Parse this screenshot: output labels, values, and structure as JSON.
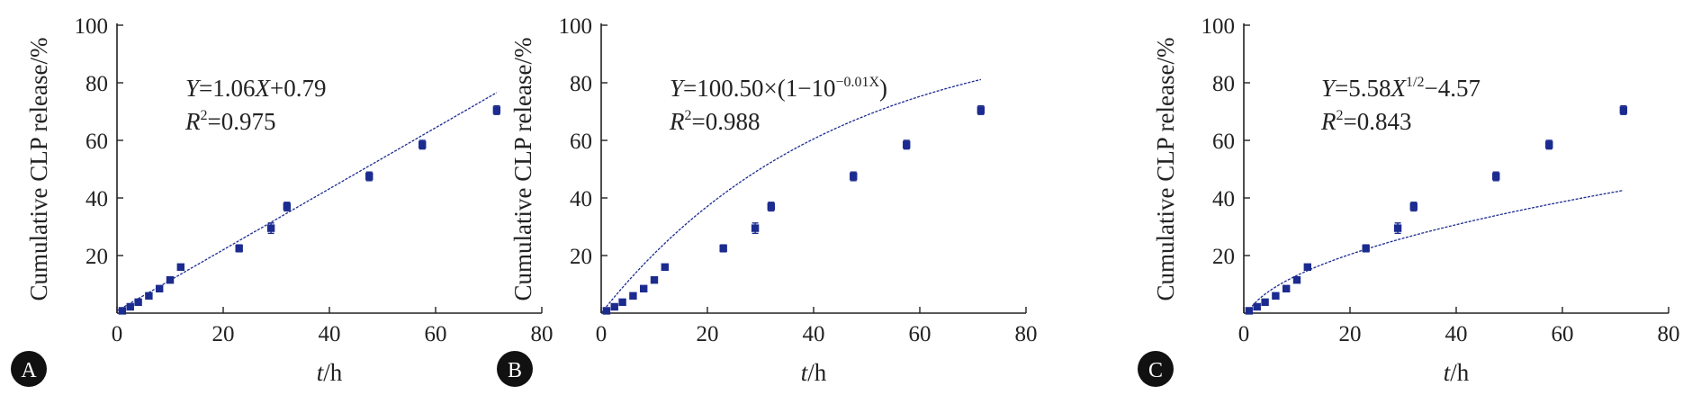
{
  "colors": {
    "series": "#1c2b8f",
    "axes": "#222222",
    "badge": "#111111"
  },
  "chart_data": [
    {
      "panel": "A",
      "type": "scatter",
      "xlabel_italic": "t",
      "xlabel_rest": "/h",
      "ylabel": "Cumulative CLP release/%",
      "xlim": [
        0,
        80
      ],
      "ylim": [
        0,
        100
      ],
      "xticks": [
        "0",
        "20",
        "40",
        "60",
        "80"
      ],
      "yticks": [
        "20",
        "40",
        "60",
        "80",
        "100"
      ],
      "grid": false,
      "points": [
        {
          "x": 1,
          "y": 0.8,
          "err": 0.3
        },
        {
          "x": 2.5,
          "y": 2.2,
          "err": 0.4
        },
        {
          "x": 4,
          "y": 3.8,
          "err": 0.5
        },
        {
          "x": 6,
          "y": 6,
          "err": 0.6
        },
        {
          "x": 8,
          "y": 8.5,
          "err": 0.6
        },
        {
          "x": 10,
          "y": 11.5,
          "err": 0.8
        },
        {
          "x": 12,
          "y": 16,
          "err": 0.8
        },
        {
          "x": 23,
          "y": 22.5,
          "err": 1.2
        },
        {
          "x": 29,
          "y": 29.5,
          "err": 1.8
        },
        {
          "x": 32,
          "y": 37,
          "err": 1.5
        },
        {
          "x": 47.5,
          "y": 47.5,
          "err": 1.5
        },
        {
          "x": 57.5,
          "y": 58.5,
          "err": 1.5
        },
        {
          "x": 71.5,
          "y": 70.5,
          "err": 1.5
        }
      ],
      "fit": {
        "model": "linear",
        "a": 1.06,
        "b": 0.79,
        "x_range": [
          0,
          71.5
        ]
      },
      "equation": {
        "lhs": "Y",
        "rhs1": "=1.06",
        "var": "X",
        "rhs2": "+0.79"
      },
      "r2": {
        "r": "R",
        "sup": "2",
        "val": "=0.975"
      }
    },
    {
      "panel": "B",
      "type": "scatter",
      "xlabel_italic": "t",
      "xlabel_rest": "/h",
      "ylabel": "Cumulative CLP release/%",
      "xlim": [
        0,
        80
      ],
      "ylim": [
        0,
        100
      ],
      "xticks": [
        "0",
        "20",
        "40",
        "60",
        "80"
      ],
      "yticks": [
        "20",
        "40",
        "60",
        "80",
        "100"
      ],
      "grid": false,
      "points": [
        {
          "x": 1,
          "y": 0.8,
          "err": 0.3
        },
        {
          "x": 2.5,
          "y": 2.2,
          "err": 0.4
        },
        {
          "x": 4,
          "y": 3.8,
          "err": 0.5
        },
        {
          "x": 6,
          "y": 6,
          "err": 0.6
        },
        {
          "x": 8,
          "y": 8.5,
          "err": 0.6
        },
        {
          "x": 10,
          "y": 11.5,
          "err": 0.8
        },
        {
          "x": 12,
          "y": 16,
          "err": 0.8
        },
        {
          "x": 23,
          "y": 22.5,
          "err": 1.2
        },
        {
          "x": 29,
          "y": 29.5,
          "err": 1.8
        },
        {
          "x": 32,
          "y": 37,
          "err": 1.5
        },
        {
          "x": 47.5,
          "y": 47.5,
          "err": 1.5
        },
        {
          "x": 57.5,
          "y": 58.5,
          "err": 1.5
        },
        {
          "x": 71.5,
          "y": 70.5,
          "err": 1.5
        }
      ],
      "fit": {
        "model": "first_order",
        "a": 100.5,
        "k": 0.01,
        "x_range": [
          0,
          71.5
        ]
      },
      "equation": {
        "lhs": "Y",
        "rhs1": "=100.50×(1−10",
        "sup": "−0.01X",
        "rhs2": ")"
      },
      "r2": {
        "r": "R",
        "sup": "2",
        "val": "=0.988"
      }
    },
    {
      "panel": "C",
      "type": "scatter",
      "xlabel_italic": "t",
      "xlabel_rest": "/h",
      "ylabel": "Cumulative CLP release/%",
      "xlim": [
        0,
        80
      ],
      "ylim": [
        0,
        100
      ],
      "xticks": [
        "0",
        "20",
        "40",
        "60",
        "80"
      ],
      "yticks": [
        "20",
        "40",
        "60",
        "80",
        "100"
      ],
      "grid": false,
      "points": [
        {
          "x": 1,
          "y": 0.8,
          "err": 0.3
        },
        {
          "x": 2.5,
          "y": 2.2,
          "err": 0.4
        },
        {
          "x": 4,
          "y": 3.8,
          "err": 0.5
        },
        {
          "x": 6,
          "y": 6,
          "err": 0.6
        },
        {
          "x": 8,
          "y": 8.5,
          "err": 0.6
        },
        {
          "x": 10,
          "y": 11.5,
          "err": 0.8
        },
        {
          "x": 12,
          "y": 16,
          "err": 0.8
        },
        {
          "x": 23,
          "y": 22.5,
          "err": 1.2
        },
        {
          "x": 29,
          "y": 29.5,
          "err": 1.8
        },
        {
          "x": 32,
          "y": 37,
          "err": 1.5
        },
        {
          "x": 47.5,
          "y": 47.5,
          "err": 1.5
        },
        {
          "x": 57.5,
          "y": 58.5,
          "err": 1.5
        },
        {
          "x": 71.5,
          "y": 70.5,
          "err": 1.5
        }
      ],
      "fit": {
        "model": "higuchi",
        "a": 5.58,
        "b": -4.57,
        "x_range": [
          0.7,
          71.5
        ]
      },
      "equation": {
        "lhs": "Y",
        "rhs1": "=5.58",
        "var": "X",
        "sup": "1/2",
        "rhs2": "−4.57"
      },
      "r2": {
        "r": "R",
        "sup": "2",
        "val": "=0.843"
      }
    }
  ]
}
